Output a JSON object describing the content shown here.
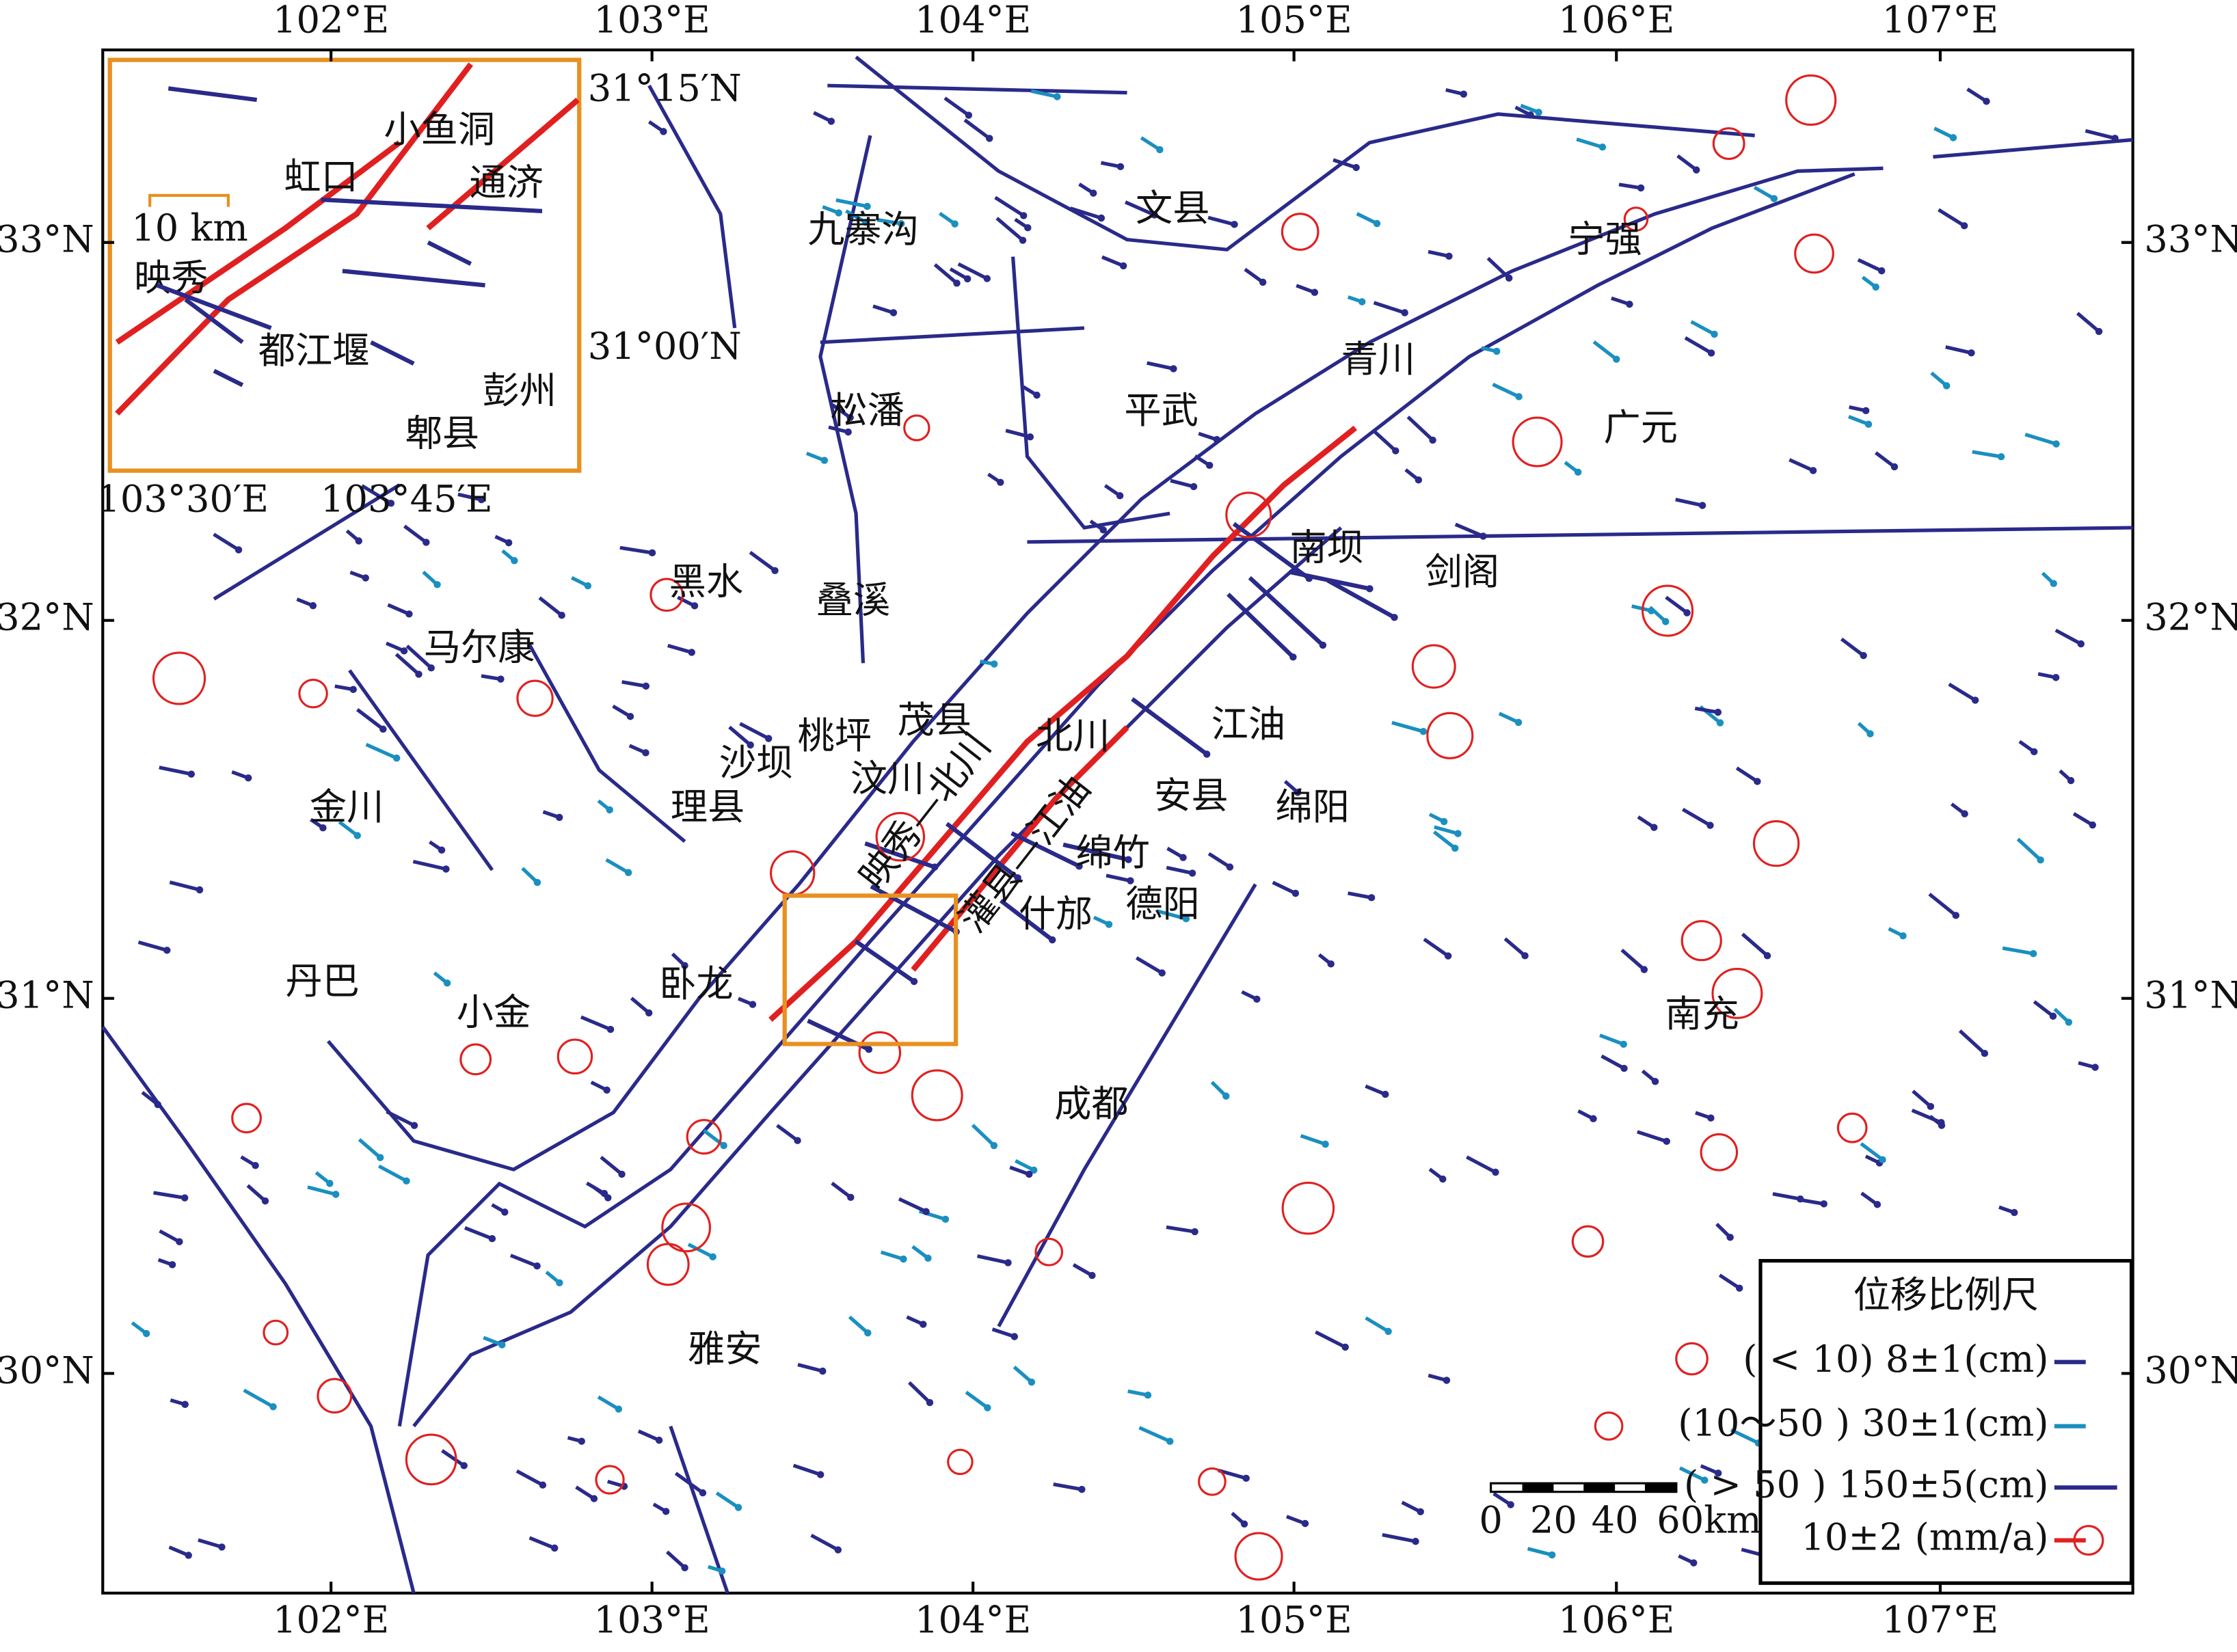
{
  "axes": {
    "lon_labels": [
      "102°E",
      "103°E",
      "104°E",
      "105°E",
      "106°E",
      "107°E"
    ],
    "lat_labels": [
      "33°N",
      "32°N",
      "31°N",
      "30°N"
    ]
  },
  "places": [
    "九寨沟",
    "文县",
    "宁强",
    "青川",
    "平武",
    "广元",
    "松潘",
    "南坝",
    "剑阁",
    "黑水",
    "叠溪",
    "马尔康",
    "江油",
    "茂县",
    "桃坪",
    "北川",
    "沙坝",
    "汶川",
    "安县",
    "绵阳",
    "金川",
    "理县",
    "绵竹",
    "德阳",
    "什邡",
    "丹巴",
    "卧龙",
    "小金",
    "南充",
    "成都",
    "雅安"
  ],
  "fault_labels": [
    "映秀—北川",
    "灌县—江油"
  ],
  "inset": {
    "lat_labels": [
      "31°15′N",
      "31°00′N"
    ],
    "lon_labels": [
      "103°30′E",
      "103°45′E"
    ],
    "scale": "10 km",
    "places": [
      "小鱼洞",
      "虹口",
      "通济",
      "映秀",
      "都江堰",
      "彭州",
      "郫县"
    ]
  },
  "scale_bar": [
    "0",
    "20",
    "40",
    "60km"
  ],
  "legend": {
    "title": "位移比例尺",
    "rows": [
      "( < 10) 8±1(cm)",
      "(10～50 ) 30±1(cm)",
      "( > 50 ) 150±5(cm)",
      "10±2 (mm/a)"
    ]
  }
}
